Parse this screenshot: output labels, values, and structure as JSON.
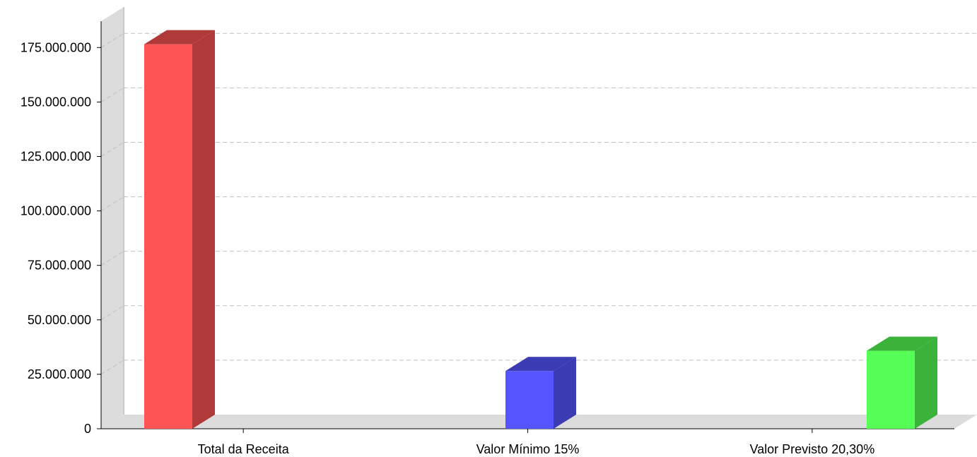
{
  "chart_data": {
    "type": "bar",
    "style": "3d",
    "categories": [
      "Total da Receita",
      "Valor Mínimo 15%",
      "Valor Previsto 20,30%"
    ],
    "values": [
      176500000,
      26500000,
      35800000
    ],
    "colors": [
      "#ff5555",
      "#5555ff",
      "#55ff55"
    ],
    "side_colors": [
      "#b03a3a",
      "#3b3bb3",
      "#3bb33b"
    ],
    "y_ticks": [
      "0",
      "25.000.000",
      "50.000.000",
      "75.000.000",
      "100.000.000",
      "125.000.000",
      "150.000.000",
      "175.000.000"
    ],
    "ylim": [
      0,
      187500000
    ],
    "grid": true,
    "legend": "none"
  }
}
